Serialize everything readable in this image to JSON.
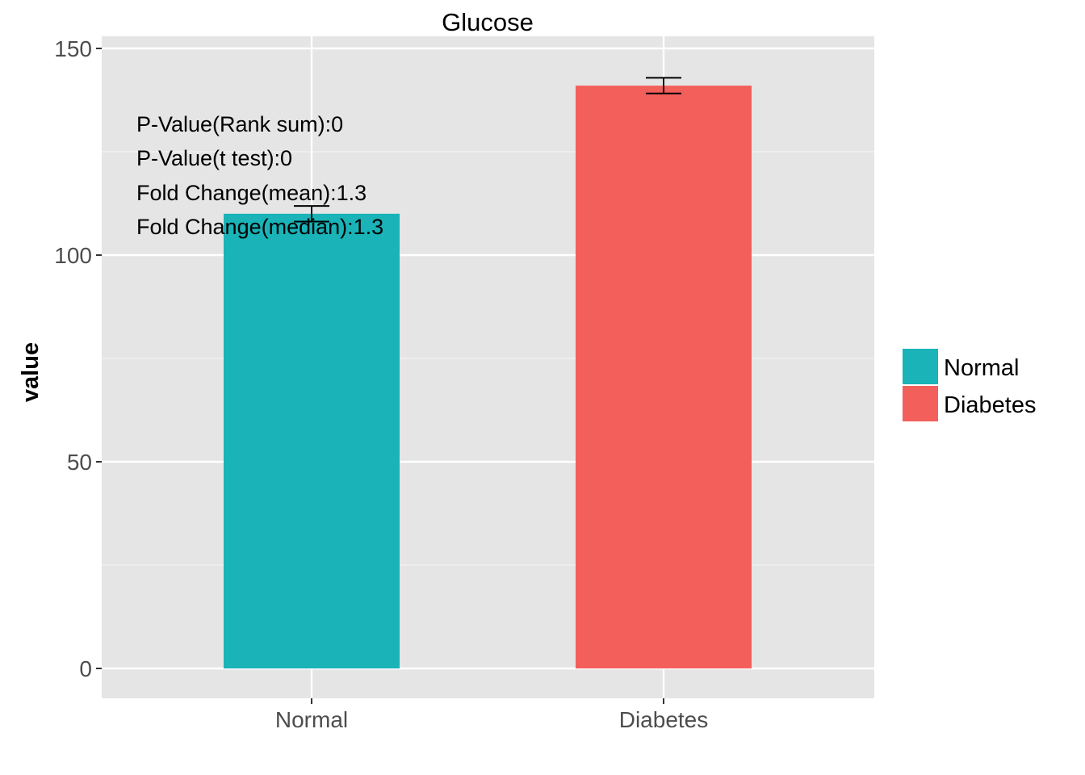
{
  "chart_data": {
    "type": "bar",
    "title": "Glucose",
    "xlabel": "",
    "ylabel": "value",
    "ylim": [
      -7,
      150
    ],
    "yticks": [
      0,
      50,
      100,
      150
    ],
    "categories": [
      "Normal",
      "Diabetes"
    ],
    "values": [
      110,
      141
    ],
    "error": [
      1.9,
      1.9
    ],
    "colors": [
      "#19b3b8",
      "#f35f5b"
    ],
    "panel_background": "#e5e5e5",
    "grid": true,
    "annotations": [
      "P-Value(Rank sum):0",
      "P-Value(t test):0",
      "Fold Change(mean):1.3",
      "Fold Change(median):1.3"
    ],
    "legend": {
      "position": "right",
      "entries": [
        {
          "label": "Normal",
          "color": "#19b3b8"
        },
        {
          "label": "Diabetes",
          "color": "#f35f5b"
        }
      ]
    }
  }
}
